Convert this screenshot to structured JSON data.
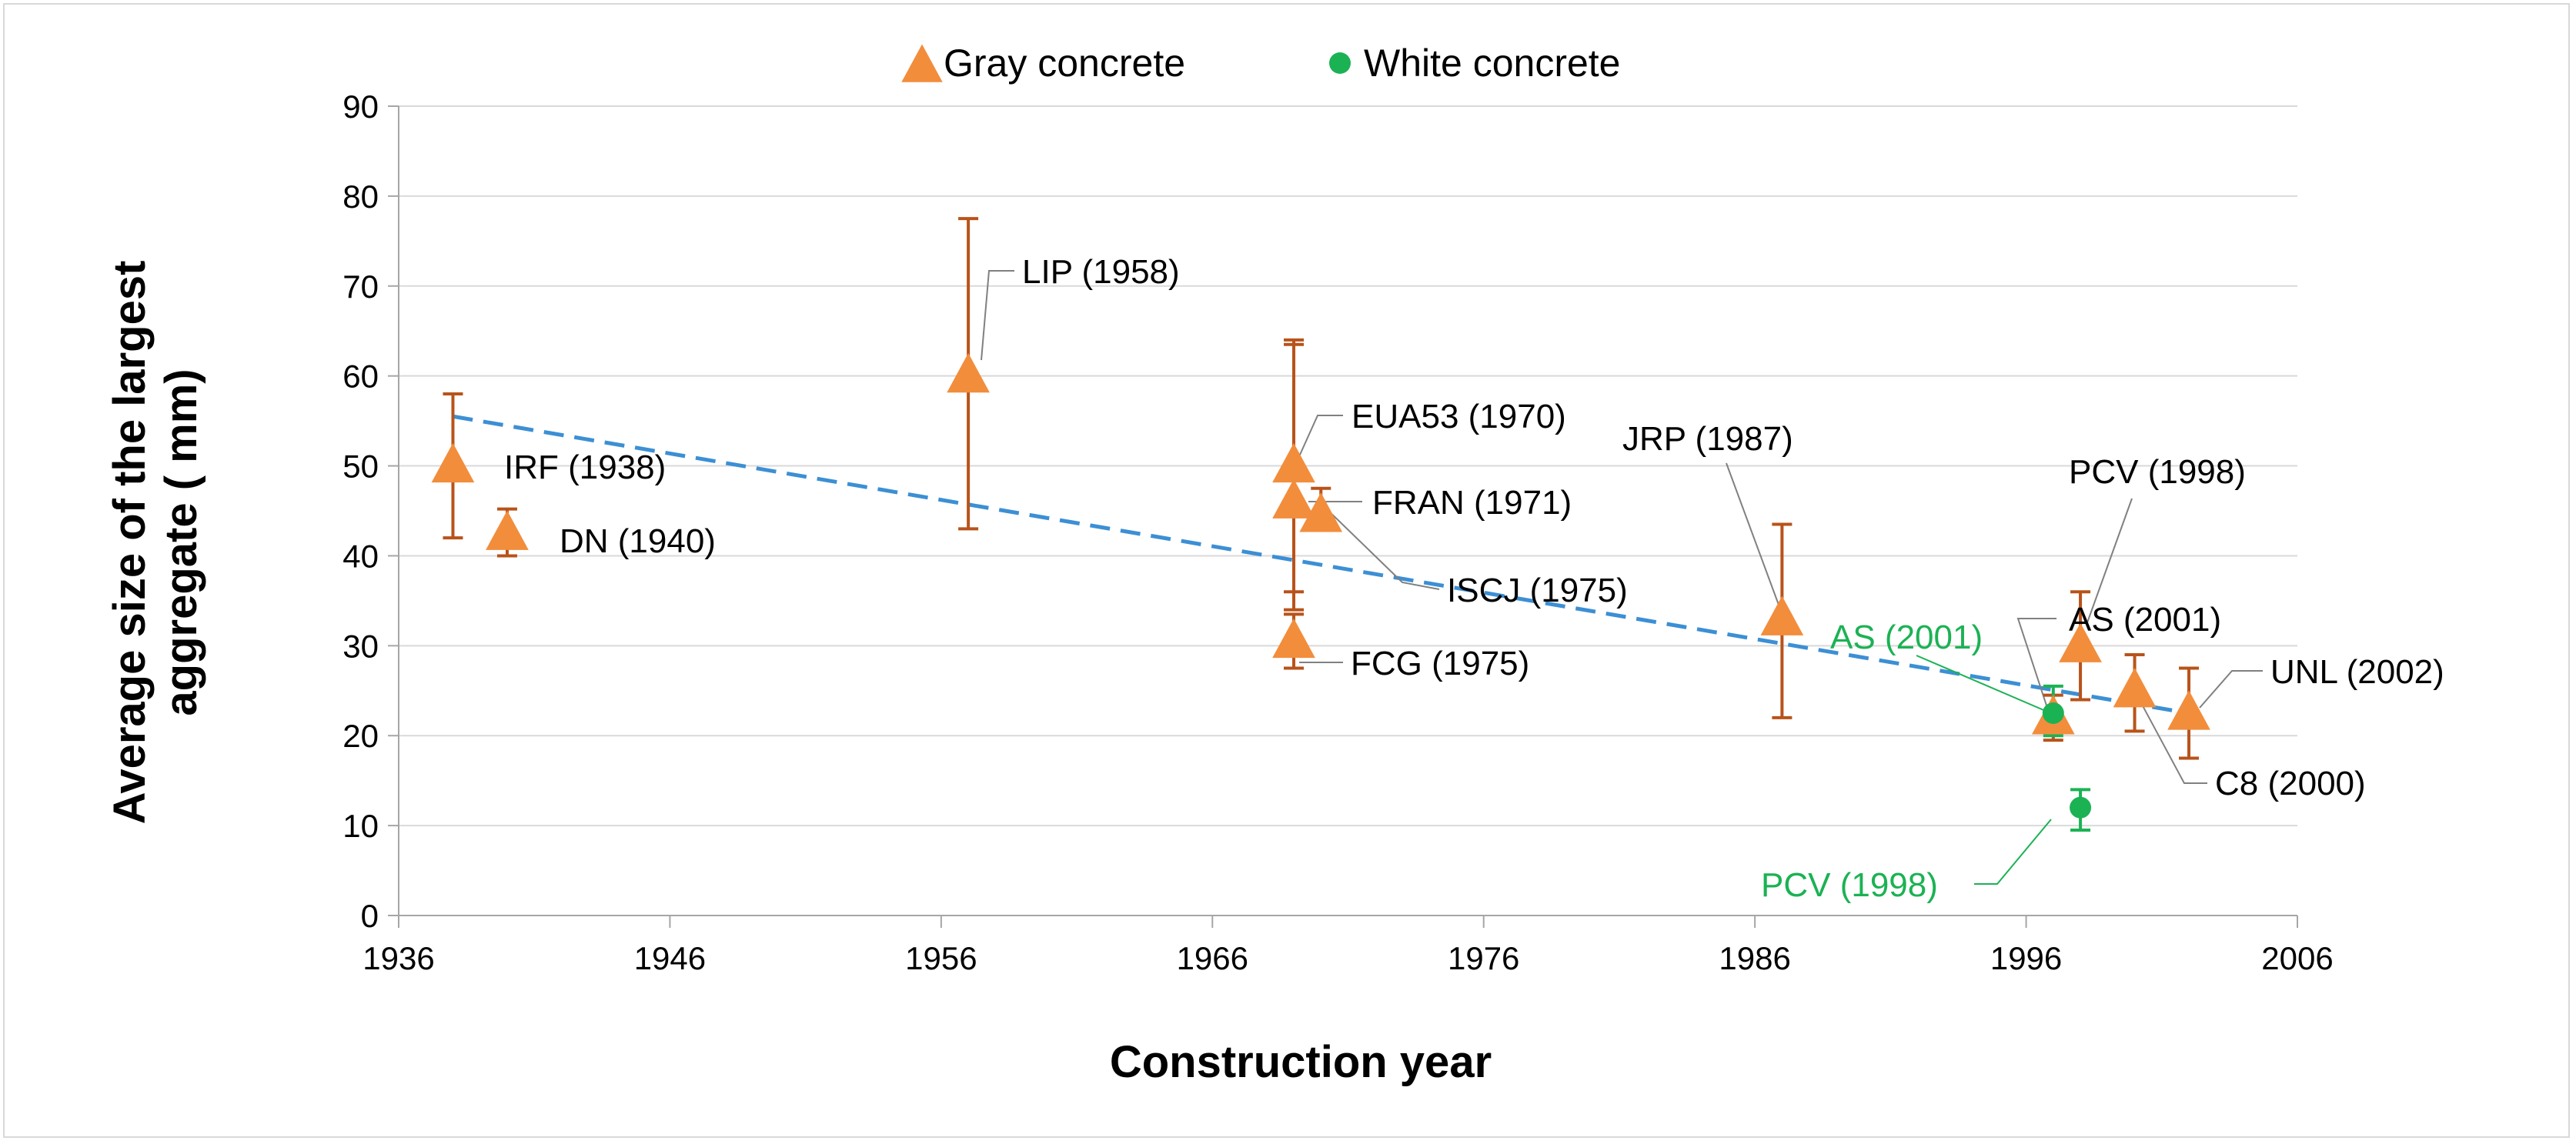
{
  "chart_data": {
    "type": "scatter",
    "title": "",
    "xlabel": "Construction year",
    "ylabel_lines": [
      "Average size of the largest",
      "aggregate ( mm)"
    ],
    "xlim": [
      1936,
      2006
    ],
    "ylim": [
      0,
      90
    ],
    "xticks": [
      1936,
      1946,
      1956,
      1966,
      1976,
      1986,
      1996,
      2006
    ],
    "yticks": [
      0,
      10,
      20,
      30,
      40,
      50,
      60,
      70,
      80,
      90
    ],
    "grid": "horizontal",
    "legend_position": "top-center",
    "colors": {
      "gray": "#f28d3c",
      "gray_err": "#b8531a",
      "white": "#1bb254",
      "trend": "#3c8fd4",
      "grid": "#d9d9d9",
      "axis": "#a6a6a6",
      "leader": "#808080"
    },
    "series": [
      {
        "name": "Gray concrete",
        "marker": "triangle",
        "points": [
          {
            "label": "IRF (1938)",
            "x": 1938,
            "y": 50,
            "err_low": 42,
            "err_high": 58
          },
          {
            "label": "DN (1940)",
            "x": 1940,
            "y": 42.5,
            "err_low": 40,
            "err_high": 45.2
          },
          {
            "label": "LIP (1958)",
            "x": 1957,
            "y": 60,
            "err_low": 43,
            "err_high": 77.5
          },
          {
            "label": "EUA53 (1970)",
            "x": 1969,
            "y": 50,
            "err_low": 36,
            "err_high": 64
          },
          {
            "label": "FRAN (1971)",
            "x": 1969,
            "y": 46,
            "err_low": 34,
            "err_high": 63.5
          },
          {
            "label": "ISCJ (1975)",
            "x": 1970,
            "y": 44.5,
            "err_low": 43,
            "err_high": 47.5
          },
          {
            "label": "FCG (1975)",
            "x": 1969,
            "y": 30.5,
            "err_low": 27.5,
            "err_high": 33.5
          },
          {
            "label": "JRP (1987)",
            "x": 1987,
            "y": 33,
            "err_low": 22,
            "err_high": 43.5
          },
          {
            "label": "AS (2001)",
            "x": 1997,
            "y": 22,
            "err_low": 19.5,
            "err_high": 24.5
          },
          {
            "label": "PCV (1998)",
            "x": 1998,
            "y": 30,
            "err_low": 24,
            "err_high": 36
          },
          {
            "label": "C8 (2000)",
            "x": 2000,
            "y": 25,
            "err_low": 20.5,
            "err_high": 29
          },
          {
            "label": "UNL (2002)",
            "x": 2002,
            "y": 22.5,
            "err_low": 17.5,
            "err_high": 27.5
          }
        ]
      },
      {
        "name": "White concrete",
        "marker": "circle",
        "points": [
          {
            "label": "AS (2001)",
            "x": 1997,
            "y": 22.5,
            "err_low": 20,
            "err_high": 25.5
          },
          {
            "label": "PCV (1998)",
            "x": 1998,
            "y": 12,
            "err_low": 9.5,
            "err_high": 14
          }
        ]
      }
    ],
    "trendline": {
      "style": "dashed",
      "x": [
        1938,
        2002
      ],
      "y": [
        55.5,
        22.5
      ]
    }
  }
}
